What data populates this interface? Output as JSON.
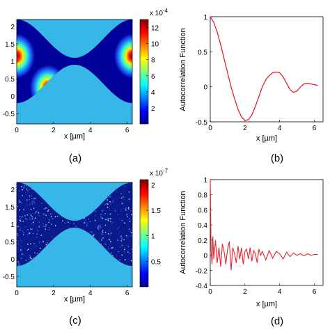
{
  "chart_data": [
    {
      "panel": "(a)",
      "type": "heatmap",
      "xlabel": "x [µm]",
      "xticks": [
        "0",
        "2",
        "4",
        "6"
      ],
      "yticks": [
        "2",
        "1.5",
        "1",
        "0.5",
        "0",
        "-0.5"
      ],
      "xlim": [
        0,
        6.28
      ],
      "ylim": [
        -0.8,
        2.2
      ],
      "colorbar": {
        "scale_label": "x 10",
        "scale_exp": "-4",
        "ticks": [
          "12",
          "10",
          "8",
          "6",
          "4",
          "2"
        ],
        "range": [
          0,
          13
        ],
        "colormap": "jet"
      },
      "background_color": "#36b7e8",
      "channel": {
        "lower": "0.2*cos(x)",
        "upper": "2.2 - ... shown as sinusoidal band between ~0.3 and ~2.2"
      },
      "peaks": [
        {
          "x": 0.0,
          "y": 1.15,
          "value": 12
        },
        {
          "x": 1.7,
          "y": 0.25,
          "value": 12
        },
        {
          "x": 6.28,
          "y": 1.15,
          "value": 12
        }
      ]
    },
    {
      "panel": "(b)",
      "type": "line",
      "xlabel": "x [µm]",
      "ylabel": "Autocorrelation Function",
      "xticks": [
        "0",
        "2",
        "4",
        "6"
      ],
      "yticks": [
        "1",
        "0.5",
        "0",
        "-0.5"
      ],
      "xlim": [
        0,
        6.5
      ],
      "ylim": [
        -0.5,
        1
      ],
      "series": [
        {
          "color": "#e8202a",
          "x": [
            0,
            0.2,
            0.4,
            0.6,
            0.8,
            1.0,
            1.2,
            1.4,
            1.6,
            1.8,
            2.0,
            2.2,
            2.4,
            2.6,
            2.8,
            3.0,
            3.2,
            3.4,
            3.6,
            3.8,
            4.0,
            4.2,
            4.4,
            4.6,
            4.8,
            5.0,
            5.2,
            5.4,
            5.6,
            5.8,
            6.0,
            6.2
          ],
          "y": [
            1.0,
            0.92,
            0.78,
            0.6,
            0.4,
            0.2,
            0.0,
            -0.17,
            -0.32,
            -0.43,
            -0.48,
            -0.47,
            -0.4,
            -0.28,
            -0.14,
            0.0,
            0.1,
            0.16,
            0.2,
            0.21,
            0.2,
            0.14,
            0.05,
            -0.04,
            -0.08,
            -0.06,
            0.0,
            0.04,
            0.05,
            0.04,
            0.03,
            0.02
          ]
        }
      ]
    },
    {
      "panel": "(c)",
      "type": "heatmap",
      "xlabel": "x [µm]",
      "xticks": [
        "0",
        "2",
        "4",
        "6"
      ],
      "yticks": [
        "2",
        "1.5",
        "1",
        "0.5",
        "0",
        "-0.5"
      ],
      "xlim": [
        0,
        6.28
      ],
      "ylim": [
        -0.8,
        2.2
      ],
      "colorbar": {
        "scale_label": "x 10",
        "scale_exp": "-7",
        "ticks": [
          "2",
          "1.5",
          "1",
          "0.5"
        ],
        "range": [
          0,
          2.1
        ],
        "colormap": "jet"
      },
      "background_color": "#36b7e8",
      "noise_color": "#0a1a8a"
    },
    {
      "panel": "(d)",
      "type": "line",
      "xlabel": "x [µm]",
      "ylabel": "Autocorrelation Function",
      "xticks": [
        "0",
        "2",
        "4",
        "6"
      ],
      "yticks": [
        "1",
        "0.8",
        "0.6",
        "0.4",
        "0.2",
        "0",
        "-0.2",
        "-0.4"
      ],
      "xlim": [
        0,
        6.5
      ],
      "ylim": [
        -0.4,
        1
      ],
      "series": [
        {
          "color": "#e8202a",
          "x": [
            0,
            0.05,
            0.1,
            0.15,
            0.2,
            0.3,
            0.4,
            0.5,
            0.6,
            0.7,
            0.8,
            0.9,
            1.0,
            1.1,
            1.2,
            1.3,
            1.4,
            1.5,
            1.6,
            1.7,
            1.8,
            1.9,
            2.0,
            2.1,
            2.2,
            2.3,
            2.4,
            2.5,
            2.6,
            2.7,
            2.8,
            2.9,
            3.0,
            3.2,
            3.4,
            3.6,
            3.8,
            4.0,
            4.2,
            4.4,
            4.6,
            4.8,
            5.0,
            5.2,
            5.4,
            5.6,
            5.8,
            6.0,
            6.2
          ],
          "y": [
            1.0,
            0.08,
            -0.12,
            0.25,
            -0.05,
            0.2,
            -0.1,
            0.1,
            -0.15,
            0.15,
            0.05,
            -0.12,
            0.08,
            0.18,
            -0.2,
            0.1,
            0.02,
            -0.1,
            0.12,
            -0.05,
            0.1,
            -0.12,
            0.05,
            0.08,
            -0.05,
            0.1,
            -0.08,
            0.06,
            0.02,
            -0.1,
            0.08,
            0.0,
            0.05,
            -0.06,
            0.06,
            -0.04,
            0.05,
            0.02,
            -0.05,
            0.04,
            -0.02,
            0.03,
            0.0,
            0.02,
            -0.01,
            0.02,
            0.0,
            0.01,
            0.01
          ]
        }
      ]
    }
  ],
  "panel_labels": [
    "(a)",
    "(b)",
    "(c)",
    "(d)"
  ]
}
